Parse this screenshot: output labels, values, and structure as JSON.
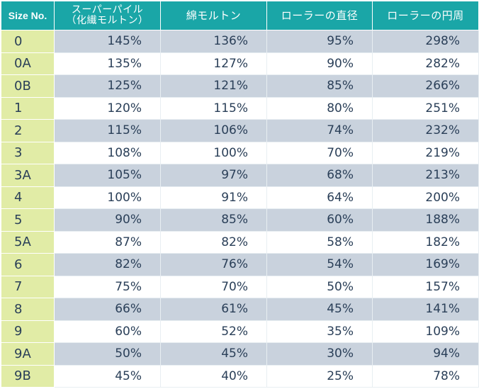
{
  "table": {
    "headers": {
      "size": "Size No.",
      "super_pile_line1": "スーパーパイル",
      "super_pile_line2": "（化繊モルトン）",
      "cotton_molton": "綿モルトン",
      "roller_diameter": "ローラーの直径",
      "roller_circumference": "ローラーの円周"
    },
    "rows": [
      {
        "size": "0",
        "super_pile": "145%",
        "cotton_molton": "136%",
        "roller_diameter": "95%",
        "roller_circumference": "298%"
      },
      {
        "size": "0A",
        "super_pile": "135%",
        "cotton_molton": "127%",
        "roller_diameter": "90%",
        "roller_circumference": "282%"
      },
      {
        "size": "0B",
        "super_pile": "125%",
        "cotton_molton": "121%",
        "roller_diameter": "85%",
        "roller_circumference": "266%"
      },
      {
        "size": "1",
        "super_pile": "120%",
        "cotton_molton": "115%",
        "roller_diameter": "80%",
        "roller_circumference": "251%"
      },
      {
        "size": "2",
        "super_pile": "115%",
        "cotton_molton": "106%",
        "roller_diameter": "74%",
        "roller_circumference": "232%"
      },
      {
        "size": "3",
        "super_pile": "108%",
        "cotton_molton": "100%",
        "roller_diameter": "70%",
        "roller_circumference": "219%"
      },
      {
        "size": "3A",
        "super_pile": "105%",
        "cotton_molton": "97%",
        "roller_diameter": "68%",
        "roller_circumference": "213%"
      },
      {
        "size": "4",
        "super_pile": "100%",
        "cotton_molton": "91%",
        "roller_diameter": "64%",
        "roller_circumference": "200%"
      },
      {
        "size": "5",
        "super_pile": "90%",
        "cotton_molton": "85%",
        "roller_diameter": "60%",
        "roller_circumference": "188%"
      },
      {
        "size": "5A",
        "super_pile": "87%",
        "cotton_molton": "82%",
        "roller_diameter": "58%",
        "roller_circumference": "182%"
      },
      {
        "size": "6",
        "super_pile": "82%",
        "cotton_molton": "76%",
        "roller_diameter": "54%",
        "roller_circumference": "169%"
      },
      {
        "size": "7",
        "super_pile": "75%",
        "cotton_molton": "70%",
        "roller_diameter": "50%",
        "roller_circumference": "157%"
      },
      {
        "size": "8",
        "super_pile": "66%",
        "cotton_molton": "61%",
        "roller_diameter": "45%",
        "roller_circumference": "141%"
      },
      {
        "size": "9",
        "super_pile": "60%",
        "cotton_molton": "52%",
        "roller_diameter": "35%",
        "roller_circumference": "109%"
      },
      {
        "size": "9A",
        "super_pile": "50%",
        "cotton_molton": "45%",
        "roller_diameter": "30%",
        "roller_circumference": "94%"
      },
      {
        "size": "9B",
        "super_pile": "45%",
        "cotton_molton": "40%",
        "roller_diameter": "25%",
        "roller_circumference": "78%"
      }
    ]
  },
  "colors": {
    "header_bg": "#1aa6a7",
    "size_column_bg": "#e1eca6",
    "shaded_row_bg": "#c9d2dd",
    "text": "#2a3f58"
  }
}
